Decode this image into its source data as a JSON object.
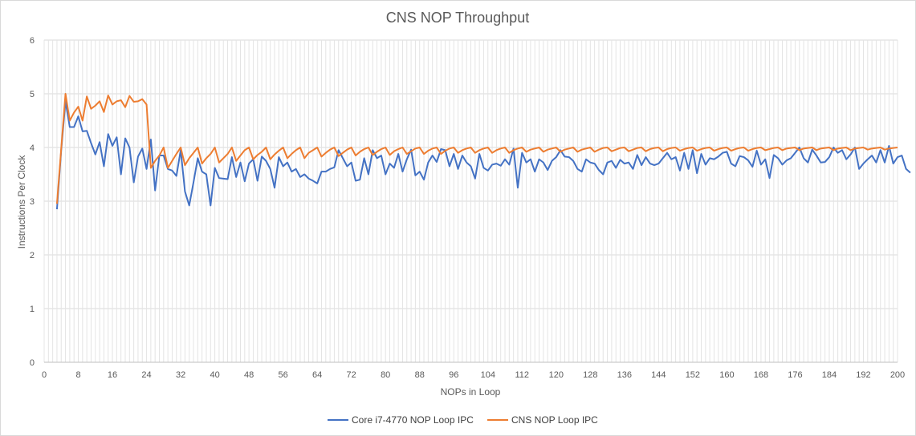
{
  "chart_data": {
    "type": "line",
    "title": "CNS NOP Throughput",
    "xlabel": "NOPs in Loop",
    "ylabel": "Instructions Per Clock",
    "xlim": [
      0,
      200
    ],
    "ylim": [
      0,
      6
    ],
    "x_ticks": [
      0,
      8,
      16,
      24,
      32,
      40,
      48,
      56,
      64,
      72,
      80,
      88,
      96,
      104,
      112,
      120,
      128,
      136,
      144,
      152,
      160,
      168,
      176,
      184,
      192,
      200
    ],
    "y_ticks": [
      0,
      1,
      2,
      3,
      4,
      5,
      6
    ],
    "grid": "vertical and horizontal",
    "legend_position": "bottom",
    "x_start": 3,
    "series": [
      {
        "name": "Core i7-4770 NOP Loop IPC",
        "color": "#4472c4",
        "values": [
          2.85,
          3.95,
          4.86,
          4.38,
          4.38,
          4.58,
          4.3,
          4.31,
          4.08,
          3.87,
          4.1,
          3.65,
          4.25,
          4.03,
          4.19,
          3.5,
          4.17,
          4.0,
          3.35,
          3.83,
          3.98,
          3.6,
          4.15,
          3.2,
          3.85,
          3.85,
          3.6,
          3.57,
          3.47,
          3.95,
          3.18,
          2.92,
          3.35,
          3.8,
          3.55,
          3.5,
          2.92,
          3.62,
          3.43,
          3.42,
          3.41,
          3.82,
          3.45,
          3.72,
          3.37,
          3.7,
          3.78,
          3.38,
          3.83,
          3.75,
          3.6,
          3.25,
          3.82,
          3.65,
          3.72,
          3.55,
          3.6,
          3.45,
          3.5,
          3.42,
          3.38,
          3.33,
          3.55,
          3.55,
          3.6,
          3.63,
          3.95,
          3.8,
          3.65,
          3.72,
          3.38,
          3.4,
          3.8,
          3.5,
          3.95,
          3.8,
          3.85,
          3.5,
          3.7,
          3.62,
          3.88,
          3.55,
          3.78,
          3.96,
          3.48,
          3.55,
          3.4,
          3.72,
          3.85,
          3.73,
          3.97,
          3.95,
          3.65,
          3.88,
          3.6,
          3.85,
          3.72,
          3.65,
          3.42,
          3.88,
          3.62,
          3.57,
          3.68,
          3.7,
          3.66,
          3.78,
          3.68,
          3.98,
          3.25,
          3.9,
          3.72,
          3.78,
          3.55,
          3.78,
          3.72,
          3.58,
          3.75,
          3.82,
          3.95,
          3.83,
          3.82,
          3.75,
          3.6,
          3.55,
          3.78,
          3.72,
          3.7,
          3.58,
          3.5,
          3.72,
          3.75,
          3.62,
          3.77,
          3.7,
          3.72,
          3.6,
          3.86,
          3.67,
          3.82,
          3.7,
          3.67,
          3.7,
          3.8,
          3.9,
          3.78,
          3.82,
          3.57,
          3.9,
          3.6,
          3.95,
          3.52,
          3.88,
          3.68,
          3.8,
          3.78,
          3.83,
          3.9,
          3.92,
          3.7,
          3.65,
          3.84,
          3.82,
          3.76,
          3.64,
          3.94,
          3.68,
          3.78,
          3.43,
          3.86,
          3.8,
          3.68,
          3.76,
          3.8,
          3.9,
          4.0,
          3.8,
          3.72,
          3.96,
          3.85,
          3.72,
          3.73,
          3.82,
          4.0,
          3.9,
          3.95,
          3.78,
          3.87,
          4.0,
          3.6,
          3.7,
          3.78,
          3.85,
          3.72,
          3.95,
          3.72,
          4.03,
          3.7,
          3.82,
          3.85,
          3.6,
          3.53
        ]
      },
      {
        "name": "CNS NOP Loop IPC",
        "color": "#ed7d31",
        "values": [
          2.95,
          3.98,
          5.0,
          4.5,
          4.65,
          4.76,
          4.5,
          4.95,
          4.72,
          4.78,
          4.86,
          4.66,
          4.97,
          4.8,
          4.86,
          4.88,
          4.75,
          4.96,
          4.85,
          4.86,
          4.9,
          4.8,
          3.62,
          3.75,
          3.85,
          4.0,
          3.62,
          3.75,
          3.88,
          4.0,
          3.67,
          3.8,
          3.9,
          4.0,
          3.7,
          3.8,
          3.88,
          4.0,
          3.72,
          3.8,
          3.88,
          4.0,
          3.75,
          3.85,
          3.95,
          4.0,
          3.78,
          3.86,
          3.92,
          4.0,
          3.78,
          3.87,
          3.94,
          4.0,
          3.8,
          3.88,
          3.95,
          4.0,
          3.8,
          3.9,
          3.95,
          4.0,
          3.83,
          3.9,
          3.96,
          4.0,
          3.84,
          3.9,
          3.96,
          4.0,
          3.85,
          3.92,
          3.97,
          4.0,
          3.86,
          3.92,
          3.97,
          4.0,
          3.86,
          3.93,
          3.97,
          4.0,
          3.88,
          3.93,
          3.98,
          4.0,
          3.88,
          3.94,
          3.98,
          4.0,
          3.88,
          3.94,
          3.98,
          4.0,
          3.9,
          3.95,
          3.98,
          4.0,
          3.9,
          3.95,
          3.98,
          4.0,
          3.9,
          3.95,
          3.98,
          4.0,
          3.9,
          3.95,
          3.98,
          4.0,
          3.92,
          3.96,
          3.98,
          4.0,
          3.92,
          3.96,
          3.98,
          4.0,
          3.92,
          3.96,
          3.98,
          4.0,
          3.92,
          3.96,
          3.98,
          4.0,
          3.92,
          3.96,
          3.99,
          4.0,
          3.93,
          3.96,
          3.99,
          4.0,
          3.93,
          3.96,
          3.99,
          4.0,
          3.93,
          3.97,
          3.99,
          4.0,
          3.93,
          3.97,
          3.99,
          4.0,
          3.94,
          3.97,
          3.99,
          4.0,
          3.94,
          3.97,
          3.99,
          4.0,
          3.94,
          3.97,
          3.99,
          4.0,
          3.94,
          3.97,
          3.99,
          4.0,
          3.94,
          3.97,
          3.99,
          4.0,
          3.95,
          3.97,
          3.99,
          4.0,
          3.95,
          3.98,
          3.99,
          4.0,
          3.95,
          3.98,
          3.99,
          4.0,
          3.95,
          3.98,
          3.99,
          4.0,
          3.95,
          3.98,
          3.99,
          4.0,
          3.95,
          3.98,
          3.99,
          4.0,
          3.96,
          3.98,
          3.99,
          4.0,
          3.96,
          3.98,
          3.99,
          4.0
        ]
      }
    ]
  }
}
